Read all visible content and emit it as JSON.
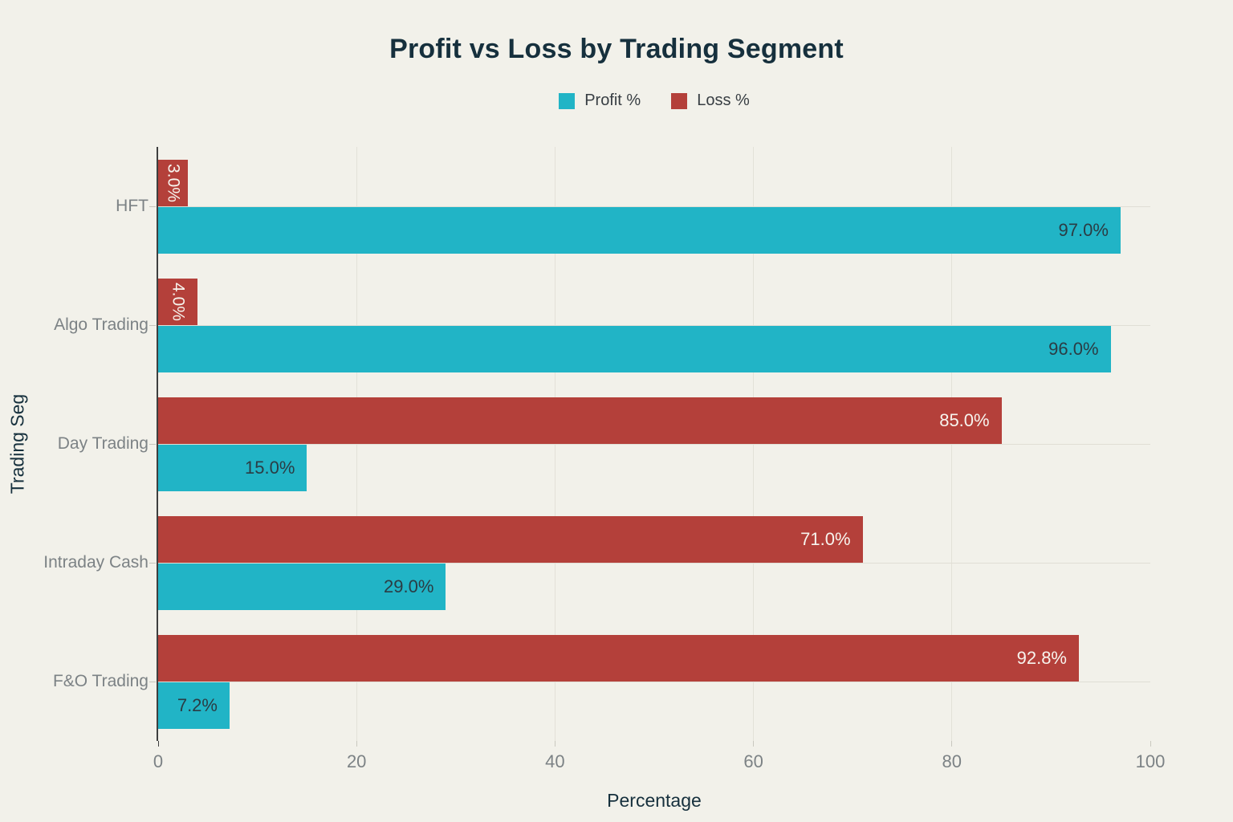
{
  "title": "Profit vs Loss by Trading Segment",
  "legend": {
    "items": [
      {
        "label": "Profit %",
        "color": "#21b4c6"
      },
      {
        "label": "Loss %",
        "color": "#b4403a"
      }
    ]
  },
  "colors": {
    "background": "#f2f1ea",
    "profit": "#21b4c6",
    "loss": "#b4403a",
    "title_text": "#16303d",
    "muted_text": "#7c8285"
  },
  "chart_data": {
    "type": "bar",
    "orientation": "horizontal",
    "title": "Profit vs Loss by Trading Segment",
    "categories": [
      "HFT",
      "Algo Trading",
      "Day Trading",
      "Intraday Cash",
      "F&O Trading"
    ],
    "series": [
      {
        "name": "Profit %",
        "color": "#21b4c6",
        "values": [
          97.0,
          96.0,
          15.0,
          29.0,
          7.2
        ],
        "labels": [
          "97.0%",
          "96.0%",
          "15.0%",
          "29.0%",
          "7.2%"
        ],
        "label_color": "#2b3c44"
      },
      {
        "name": "Loss %",
        "color": "#b4403a",
        "values": [
          3.0,
          4.0,
          85.0,
          71.0,
          92.8
        ],
        "labels": [
          "3.0%",
          "4.0%",
          "85.0%",
          "71.0%",
          "92.8%"
        ],
        "label_color": "#f7f4ee"
      }
    ],
    "bar_order_top_to_bottom": [
      "Loss %",
      "Profit %"
    ],
    "xlabel": "Percentage",
    "ylabel": "Trading Seg",
    "xlim": [
      0,
      100
    ],
    "xticks": [
      0,
      20,
      40,
      60,
      80,
      100
    ],
    "grid": true,
    "legend_position": "top-center"
  }
}
